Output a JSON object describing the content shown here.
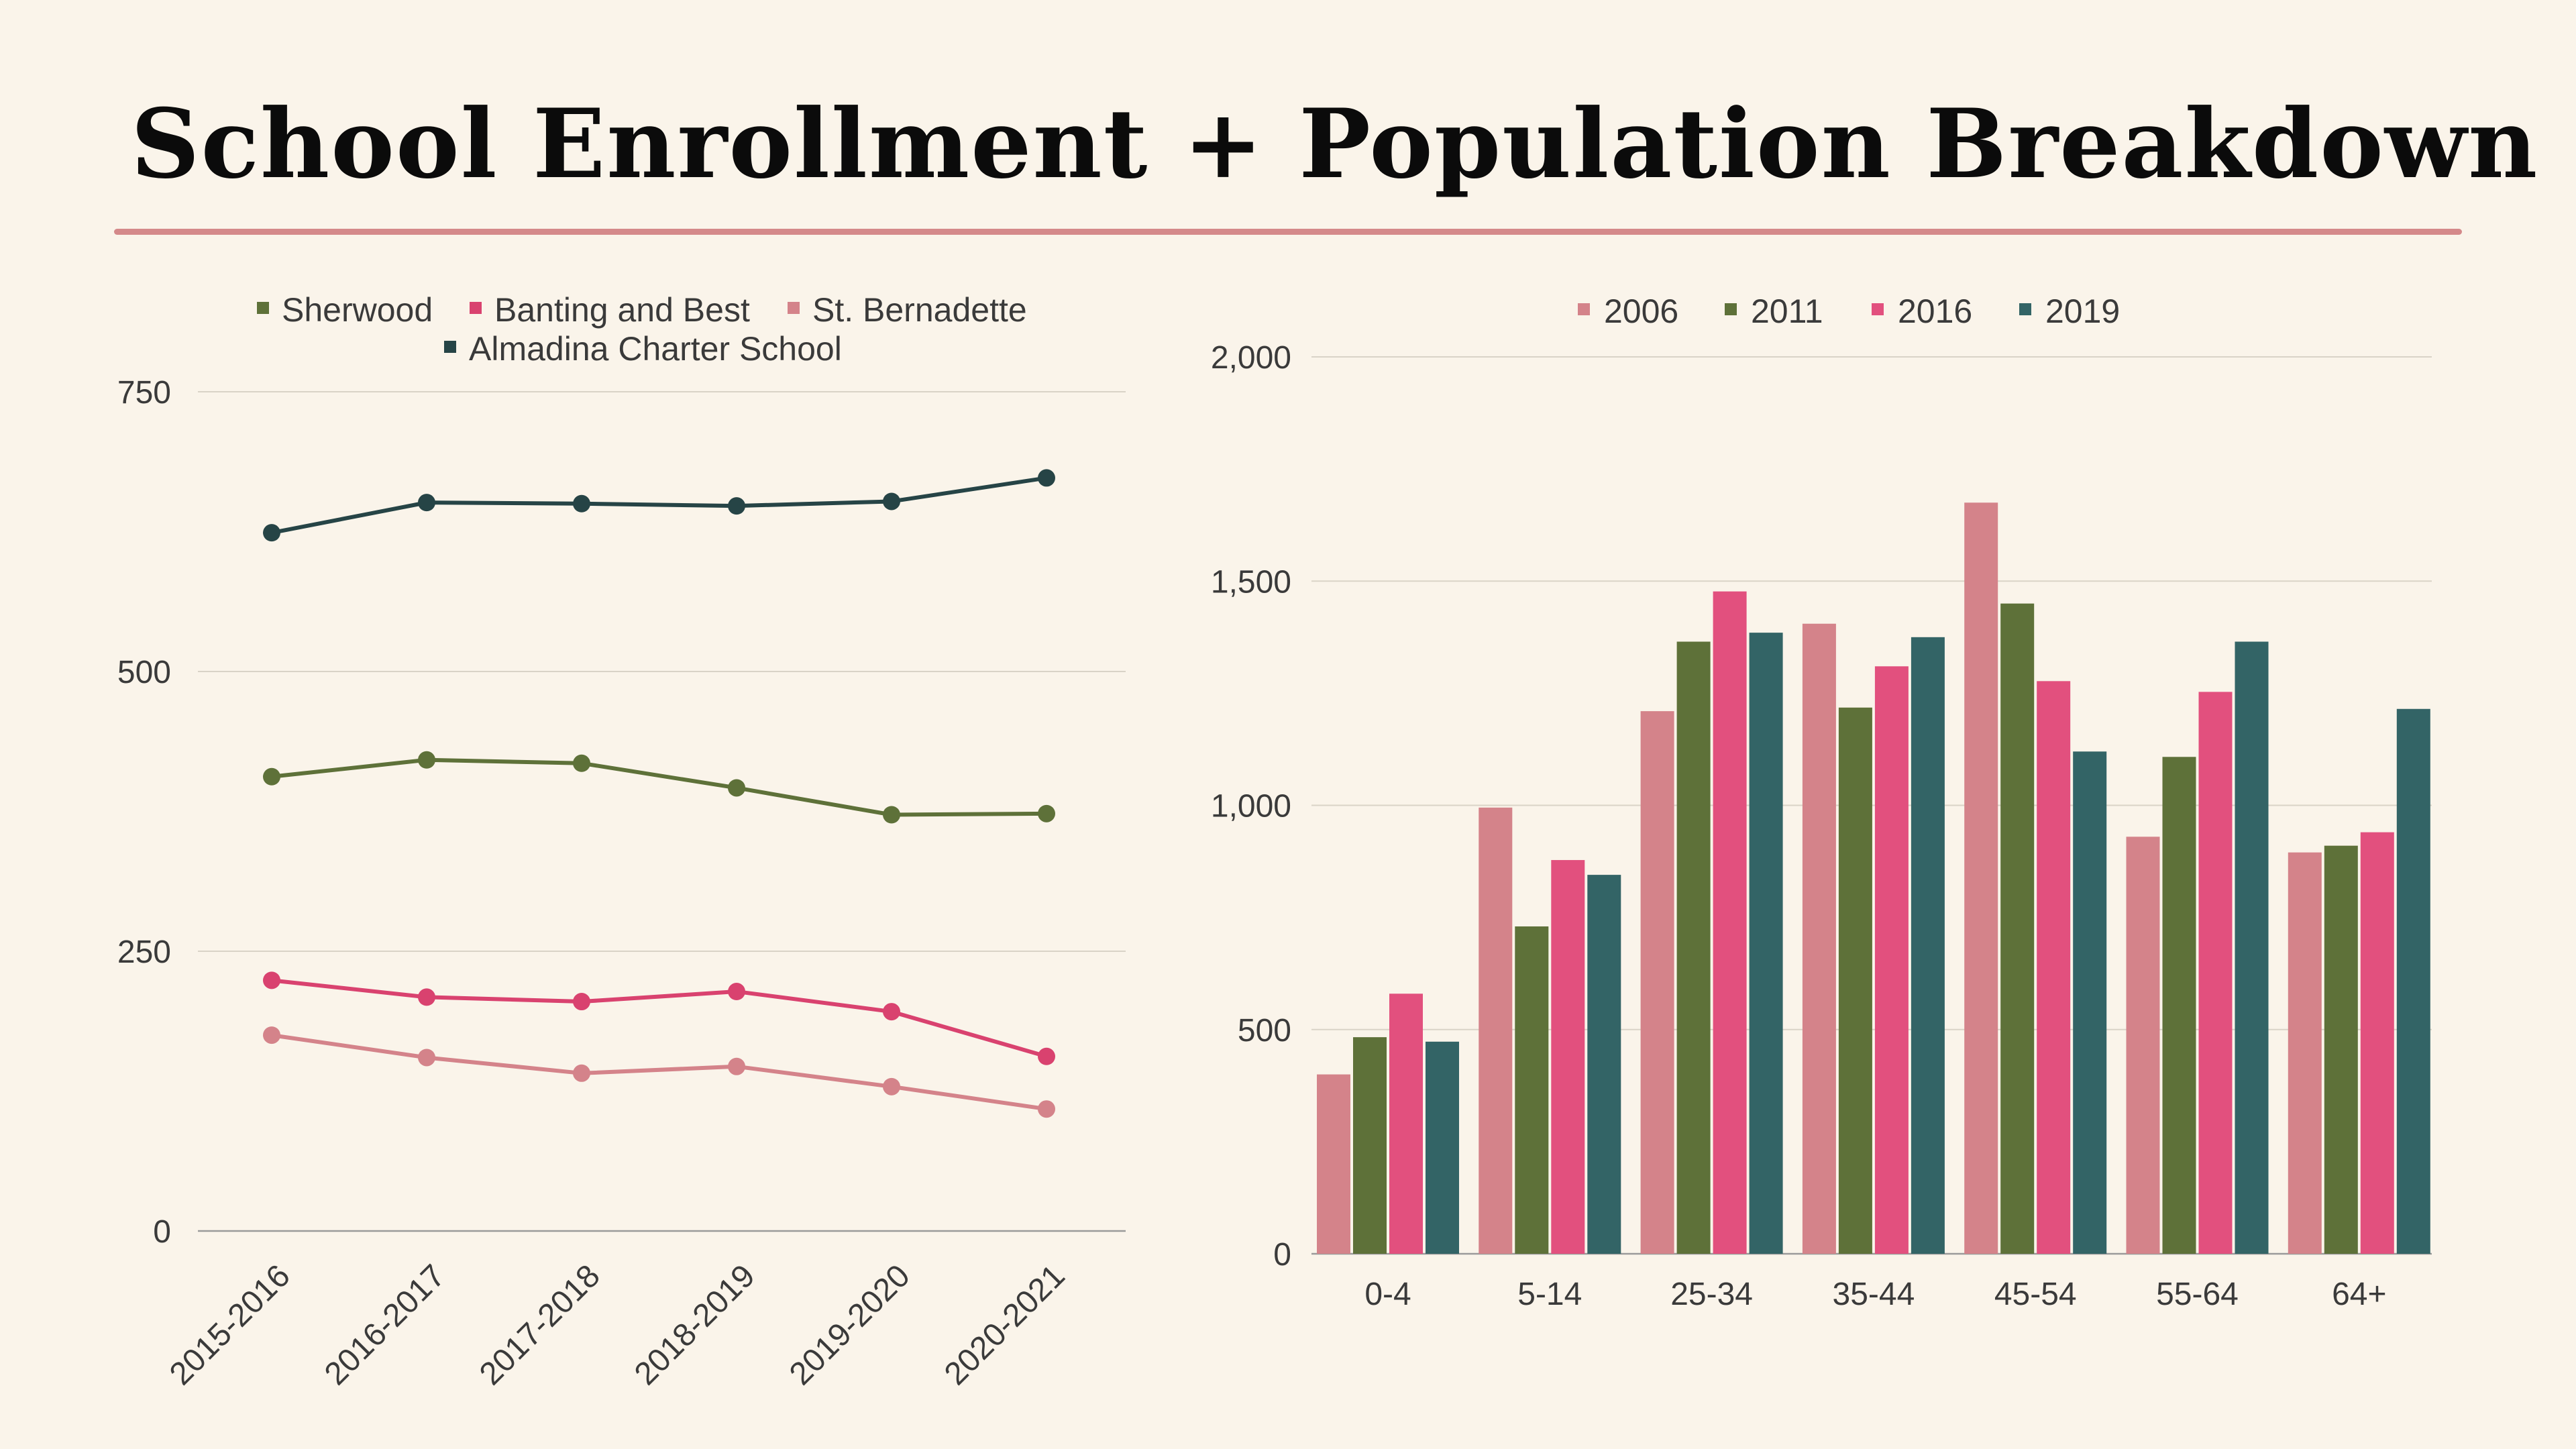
{
  "header": {
    "title": "School Enrollment + Population Breakdown"
  },
  "colors": {
    "background": "#faf4ea",
    "rule": "#d4898a",
    "sherwood": "#5e7139",
    "banting": "#d9426f",
    "bernadette": "#d4838a",
    "almadina": "#264446",
    "y2006": "#d4838a",
    "y2011": "#5e7139",
    "y2016": "#e2507e",
    "y2019": "#336466"
  },
  "chart_data": [
    {
      "type": "line",
      "title": "",
      "xlabel": "",
      "ylabel": "",
      "categories": [
        "2015-2016",
        "2016-2017",
        "2017-2018",
        "2018-2019",
        "2019-2020",
        "2020-2021"
      ],
      "ylim": [
        0,
        750
      ],
      "yticks": [
        0,
        250,
        500,
        750
      ],
      "ytick_labels": [
        "0",
        "250",
        "500",
        "750"
      ],
      "grid": true,
      "legend_position": "top",
      "series": [
        {
          "name": "Sherwood",
          "color": "#5e7139",
          "values": [
            406,
            421,
            418,
            396,
            372,
            373
          ]
        },
        {
          "name": "Banting and Best",
          "color": "#d9426f",
          "values": [
            224,
            209,
            205,
            214,
            196,
            156
          ]
        },
        {
          "name": "St. Bernadette",
          "color": "#d4838a",
          "values": [
            175,
            155,
            141,
            147,
            129,
            109
          ]
        },
        {
          "name": "Almadina Charter School",
          "color": "#264446",
          "values": [
            624,
            651,
            650,
            648,
            652,
            673
          ]
        }
      ]
    },
    {
      "type": "bar",
      "title": "",
      "xlabel": "",
      "ylabel": "",
      "categories": [
        "0-4",
        "5-14",
        "25-34",
        "35-44",
        "45-54",
        "55-64",
        "64+"
      ],
      "ylim": [
        0,
        2000
      ],
      "yticks": [
        0,
        500,
        1000,
        1500,
        2000
      ],
      "ytick_labels": [
        "0",
        "500",
        "1,000",
        "1,500",
        "2,000"
      ],
      "grid": true,
      "legend_position": "top",
      "series": [
        {
          "name": "2006",
          "color": "#d4838a",
          "values": [
            400,
            995,
            1210,
            1405,
            1675,
            930,
            895
          ]
        },
        {
          "name": "2011",
          "color": "#5e7139",
          "values": [
            483,
            730,
            1365,
            1218,
            1450,
            1108,
            910
          ]
        },
        {
          "name": "2016",
          "color": "#e2507e",
          "values": [
            580,
            878,
            1477,
            1310,
            1277,
            1253,
            940
          ]
        },
        {
          "name": "2019",
          "color": "#336466",
          "values": [
            473,
            845,
            1385,
            1375,
            1120,
            1365,
            1215
          ]
        }
      ]
    }
  ]
}
